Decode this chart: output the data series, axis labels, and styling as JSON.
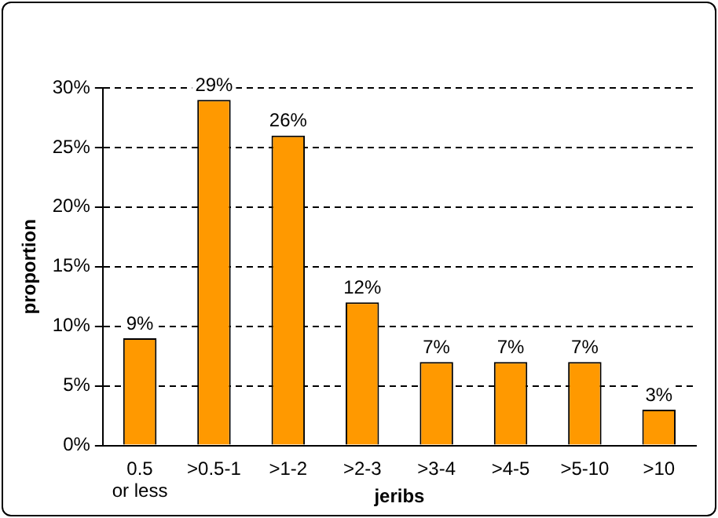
{
  "chart_data": {
    "type": "bar",
    "xlabel": "jeribs",
    "ylabel": "proportion",
    "categories": [
      "0.5 or less",
      ">0.5-1",
      ">1-2",
      ">2-3",
      ">3-4",
      ">4-5",
      ">5-10",
      ">10"
    ],
    "values": [
      9,
      29,
      26,
      12,
      7,
      7,
      7,
      3
    ],
    "value_labels": [
      "9%",
      "29%",
      "26%",
      "12%",
      "7%",
      "7%",
      "7%",
      "3%"
    ],
    "color": "#ff9900",
    "ylim": [
      0,
      30
    ],
    "yticks": [
      {
        "value": 0,
        "label": "0%"
      },
      {
        "value": 5,
        "label": "5%"
      },
      {
        "value": 10,
        "label": "10%"
      },
      {
        "value": 15,
        "label": "15%"
      },
      {
        "value": 20,
        "label": "20%"
      },
      {
        "value": 25,
        "label": "25%"
      },
      {
        "value": 30,
        "label": "30%"
      }
    ],
    "grid": "y",
    "legend": false
  }
}
